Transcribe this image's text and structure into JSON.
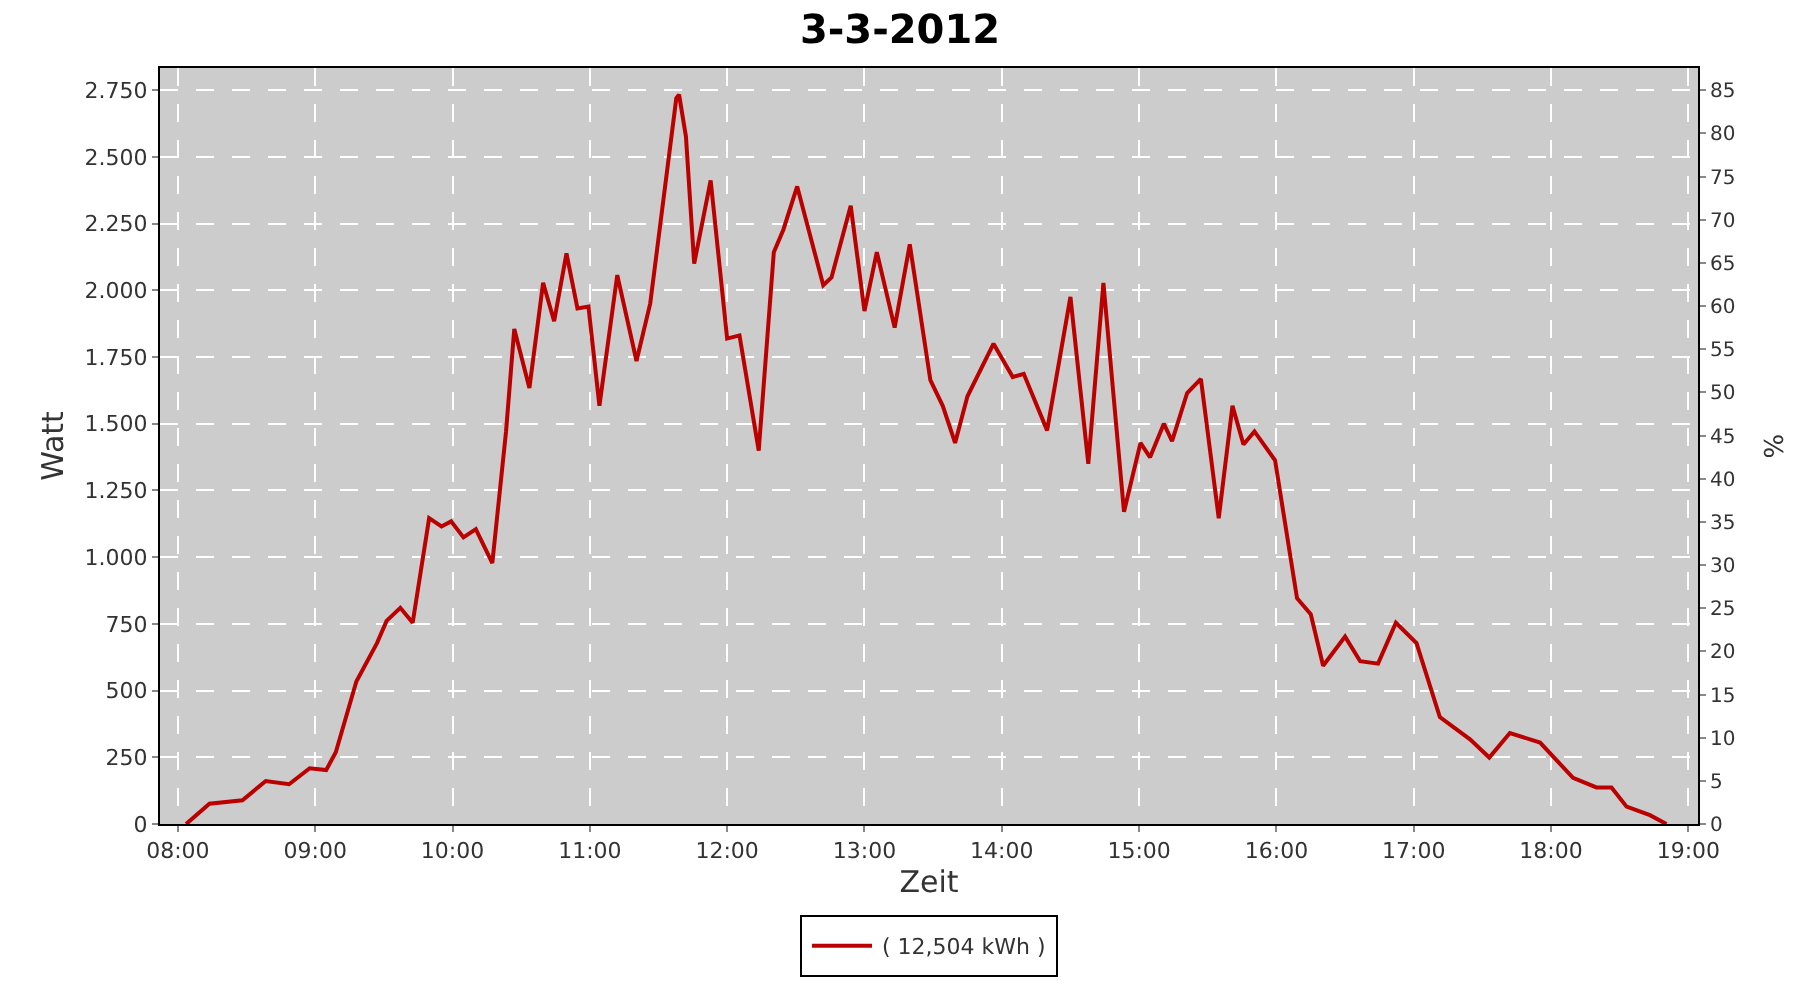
{
  "chart_data": {
    "type": "line",
    "title": "3-3-2012",
    "xlabel": "Zeit",
    "ylabel": "Watt",
    "y2label": "%",
    "x": [
      8.06,
      8.23,
      8.47,
      8.64,
      8.81,
      8.96,
      9.08,
      9.15,
      9.3,
      9.45,
      9.52,
      9.62,
      9.71,
      9.83,
      9.92,
      9.99,
      10.08,
      10.17,
      10.29,
      10.39,
      10.45,
      10.56,
      10.66,
      10.74,
      10.83,
      10.91,
      10.99,
      11.07,
      11.2,
      11.34,
      11.44,
      11.63,
      11.65,
      11.7,
      11.76,
      11.88,
      12.0,
      12.09,
      12.23,
      12.34,
      12.41,
      12.51,
      12.7,
      12.76,
      12.9,
      13.0,
      13.09,
      13.22,
      13.33,
      13.48,
      13.57,
      13.66,
      13.75,
      13.94,
      14.08,
      14.16,
      14.33,
      14.5,
      14.63,
      14.74,
      14.89,
      15.01,
      15.08,
      15.18,
      15.24,
      15.35,
      15.45,
      15.58,
      15.68,
      15.76,
      15.84,
      15.99,
      16.15,
      16.25,
      16.34,
      16.5,
      16.61,
      16.74,
      16.87,
      17.02,
      17.19,
      17.41,
      17.55,
      17.7,
      17.92,
      18.16,
      18.33,
      18.44,
      18.55,
      18.72,
      18.84
    ],
    "series": [
      {
        "name": "( 12,504 kWh )",
        "color": "#bb0000",
        "values": [
          0,
          76,
          89,
          161,
          149,
          209,
          202,
          269,
          534,
          678,
          761,
          810,
          754,
          1146,
          1115,
          1134,
          1074,
          1105,
          978,
          1471,
          1855,
          1634,
          2028,
          1884,
          2138,
          1932,
          1939,
          1567,
          2057,
          1735,
          1951,
          2720,
          2733,
          2576,
          2100,
          2412,
          1819,
          1831,
          1399,
          2143,
          2228,
          2389,
          2019,
          2048,
          2317,
          1922,
          2143,
          1860,
          2172,
          1663,
          1567,
          1428,
          1603,
          1800,
          1675,
          1687,
          1475,
          1975,
          1350,
          2028,
          1170,
          1428,
          1374,
          1500,
          1435,
          1615,
          1668,
          1146,
          1567,
          1422,
          1471,
          1363,
          846,
          786,
          593,
          702,
          610,
          601,
          754,
          678,
          401,
          317,
          249,
          341,
          305,
          173,
          137,
          137,
          65,
          33,
          0
        ]
      }
    ],
    "xlim": [
      7.87,
      19.07
    ],
    "xticks": [
      {
        "value": 8,
        "label": "08:00"
      },
      {
        "value": 9,
        "label": "09:00"
      },
      {
        "value": 10,
        "label": "10:00"
      },
      {
        "value": 11,
        "label": "11:00"
      },
      {
        "value": 12,
        "label": "12:00"
      },
      {
        "value": 13,
        "label": "13:00"
      },
      {
        "value": 14,
        "label": "14:00"
      },
      {
        "value": 15,
        "label": "15:00"
      },
      {
        "value": 16,
        "label": "16:00"
      },
      {
        "value": 17,
        "label": "17:00"
      },
      {
        "value": 18,
        "label": "18:00"
      },
      {
        "value": 19,
        "label": "19:00"
      }
    ],
    "ylim": [
      0,
      2833
    ],
    "yticks": [
      0,
      250,
      500,
      750,
      {
        "value": 1000,
        "label": "1.000"
      },
      {
        "value": 1250,
        "label": "1.250"
      },
      {
        "value": 1500,
        "label": "1.500"
      },
      {
        "value": 1750,
        "label": "1.750"
      },
      {
        "value": 2000,
        "label": "2.000"
      },
      {
        "value": 2250,
        "label": "2.250"
      },
      {
        "value": 2500,
        "label": "2.500"
      },
      {
        "value": 2750,
        "label": "2.750"
      }
    ],
    "y2lim": [
      0,
      87.57
    ],
    "y2ticks": [
      0,
      5,
      10,
      15,
      20,
      25,
      30,
      35,
      40,
      45,
      50,
      55,
      60,
      65,
      70,
      75,
      80,
      85
    ],
    "grid": true,
    "legend": "bottom",
    "marker": "none",
    "line_style": "solid"
  }
}
